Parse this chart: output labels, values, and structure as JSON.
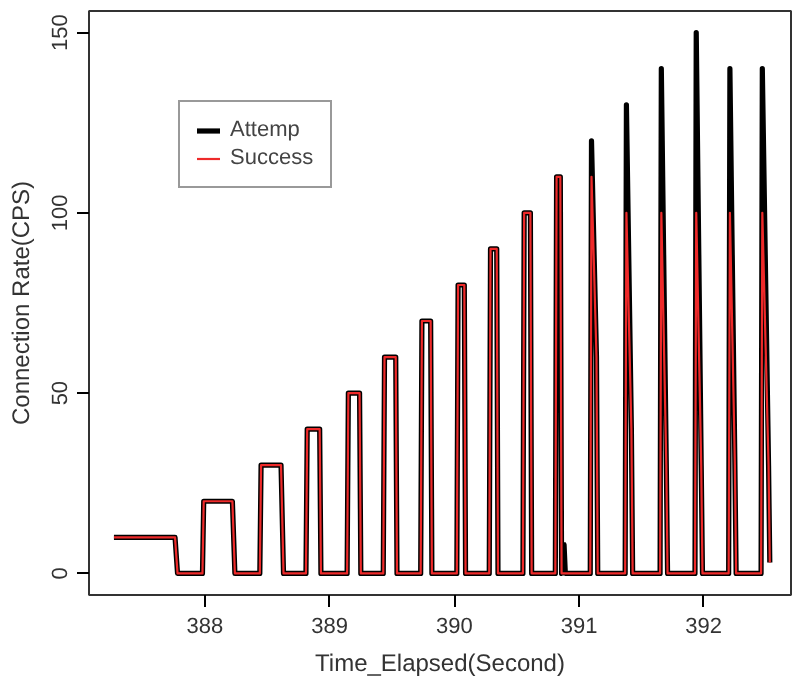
{
  "chart_data": {
    "type": "line",
    "xlabel": "Time_Elapsed(Second)",
    "ylabel": "Connection Rate(CPS)",
    "xlim": [
      387.07,
      392.7
    ],
    "ylim": [
      -6,
      156
    ],
    "xticks": [
      388,
      389,
      390,
      391,
      392
    ],
    "yticks": [
      0,
      50,
      100,
      150
    ],
    "grid": false,
    "legend": "top left",
    "marker": "none",
    "line_style": "solid",
    "series": [
      {
        "name": "Attemp",
        "color": "#000000",
        "x": [
          387.27,
          387.76,
          387.78,
          387.98,
          387.99,
          388.22,
          388.24,
          388.44,
          388.45,
          388.61,
          388.63,
          388.81,
          388.82,
          388.92,
          388.93,
          389.14,
          389.15,
          389.24,
          389.25,
          389.43,
          389.44,
          389.53,
          389.54,
          389.73,
          389.74,
          389.81,
          389.82,
          390.02,
          390.03,
          390.08,
          390.09,
          390.28,
          390.29,
          390.34,
          390.35,
          390.55,
          390.56,
          390.61,
          390.62,
          390.81,
          390.82,
          390.85,
          390.86,
          390.87,
          390.88,
          390.89,
          391.09,
          391.1,
          391.14,
          391.15,
          391.37,
          391.38,
          391.42,
          391.43,
          391.65,
          391.66,
          391.7,
          391.71,
          391.93,
          391.94,
          391.98,
          391.99,
          392.2,
          392.21,
          392.25,
          392.26,
          392.46,
          392.47,
          392.52,
          392.53
        ],
        "values": [
          10,
          10,
          0,
          0,
          20,
          20,
          0,
          0,
          30,
          30,
          0,
          0,
          40,
          40,
          0,
          0,
          50,
          50,
          0,
          0,
          60,
          60,
          0,
          0,
          70,
          70,
          0,
          0,
          80,
          80,
          0,
          0,
          90,
          90,
          0,
          0,
          100,
          100,
          0,
          0,
          110,
          110,
          0,
          8,
          8,
          0,
          0,
          120,
          60,
          0,
          0,
          130,
          40,
          0,
          0,
          140,
          30,
          0,
          0,
          150,
          30,
          0,
          0,
          140,
          30,
          0,
          0,
          140,
          30,
          3
        ]
      },
      {
        "name": "Success",
        "color": "#ee2a2a",
        "x": [
          387.27,
          387.76,
          387.78,
          387.98,
          387.99,
          388.22,
          388.24,
          388.44,
          388.45,
          388.61,
          388.63,
          388.81,
          388.82,
          388.92,
          388.93,
          389.14,
          389.15,
          389.24,
          389.25,
          389.43,
          389.44,
          389.53,
          389.54,
          389.73,
          389.74,
          389.81,
          389.82,
          390.02,
          390.03,
          390.08,
          390.09,
          390.28,
          390.29,
          390.34,
          390.35,
          390.55,
          390.56,
          390.61,
          390.62,
          390.81,
          390.82,
          390.85,
          390.86,
          391.09,
          391.1,
          391.14,
          391.15,
          391.37,
          391.38,
          391.42,
          391.43,
          391.65,
          391.66,
          391.7,
          391.71,
          391.93,
          391.94,
          391.98,
          391.99,
          392.2,
          392.21,
          392.25,
          392.26,
          392.46,
          392.47,
          392.52,
          392.53
        ],
        "values": [
          10,
          10,
          0,
          0,
          20,
          20,
          0,
          0,
          30,
          30,
          0,
          0,
          40,
          40,
          0,
          0,
          50,
          50,
          0,
          0,
          60,
          60,
          0,
          0,
          70,
          70,
          0,
          0,
          80,
          80,
          0,
          0,
          90,
          90,
          0,
          0,
          100,
          100,
          0,
          0,
          110,
          110,
          0,
          0,
          110,
          60,
          0,
          0,
          100,
          40,
          0,
          0,
          100,
          30,
          0,
          0,
          100,
          30,
          0,
          0,
          100,
          30,
          0,
          0,
          100,
          30,
          3
        ]
      }
    ]
  }
}
